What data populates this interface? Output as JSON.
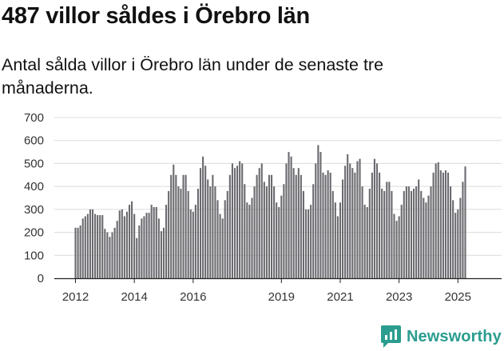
{
  "title": "487 villor såldes i Örebro län",
  "subtitle": "Antal sålda villor i Örebro län under de senaste tre månaderna.",
  "brand": {
    "name": "Newsworthy",
    "icon": "newsworthy-logo-icon",
    "color": "#2a9d8f"
  },
  "chart_data": {
    "type": "bar",
    "title": "487 villor såldes i Örebro län",
    "subtitle": "Antal sålda villor i Örebro län under de senaste tre månaderna.",
    "ylim": [
      0,
      700
    ],
    "yticks": [
      0,
      100,
      200,
      300,
      400,
      500,
      600,
      700
    ],
    "xtick_labels": [
      "2012",
      "2014",
      "2016",
      "2019",
      "2021",
      "2023",
      "2025"
    ],
    "grid": true,
    "bar_color": "#6b6a6f",
    "highlight_color": "#2a9d8f",
    "annotation": {
      "text": "487",
      "index": 160
    },
    "values": [
      220,
      220,
      230,
      260,
      270,
      280,
      300,
      300,
      280,
      275,
      275,
      275,
      215,
      200,
      180,
      200,
      220,
      250,
      295,
      300,
      270,
      290,
      320,
      335,
      280,
      175,
      230,
      260,
      270,
      285,
      285,
      320,
      310,
      310,
      260,
      205,
      220,
      320,
      380,
      450,
      495,
      450,
      400,
      390,
      450,
      450,
      380,
      300,
      290,
      320,
      390,
      480,
      530,
      490,
      430,
      400,
      450,
      400,
      340,
      280,
      260,
      340,
      380,
      450,
      500,
      480,
      490,
      510,
      500,
      410,
      330,
      320,
      350,
      400,
      450,
      480,
      500,
      420,
      400,
      450,
      450,
      400,
      330,
      310,
      360,
      410,
      500,
      550,
      530,
      480,
      450,
      480,
      450,
      380,
      300,
      300,
      320,
      410,
      500,
      580,
      550,
      460,
      450,
      470,
      460,
      380,
      330,
      270,
      330,
      430,
      490,
      540,
      500,
      480,
      460,
      510,
      520,
      400,
      320,
      310,
      390,
      460,
      520,
      500,
      460,
      390,
      380,
      420,
      420,
      380,
      280,
      250,
      270,
      320,
      380,
      400,
      400,
      380,
      390,
      400,
      430,
      380,
      350,
      330,
      360,
      400,
      460,
      500,
      505,
      470,
      460,
      470,
      460,
      400,
      340,
      285,
      300,
      350,
      420,
      487
    ]
  }
}
